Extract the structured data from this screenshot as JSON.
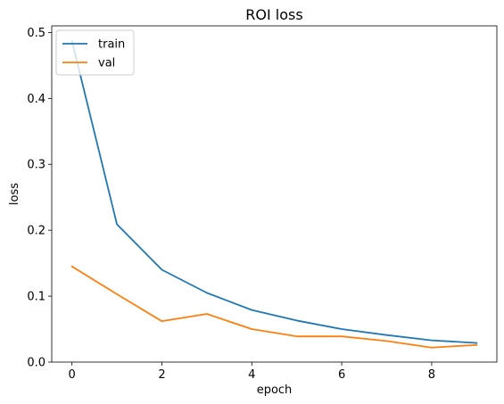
{
  "chart_data": {
    "type": "line",
    "title": "ROI loss",
    "xlabel": "epoch",
    "ylabel": "loss",
    "xlim": [
      -0.45,
      9.45
    ],
    "ylim": [
      0,
      0.51
    ],
    "xticks": [
      0,
      2,
      4,
      6,
      8
    ],
    "xtick_labels": [
      "0",
      "2",
      "4",
      "6",
      "8"
    ],
    "yticks": [
      0.0,
      0.1,
      0.2,
      0.3,
      0.4,
      0.5
    ],
    "ytick_labels": [
      "0.0",
      "0.1",
      "0.2",
      "0.3",
      "0.4",
      "0.5"
    ],
    "grid": false,
    "legend_position": "top-left",
    "x": [
      0,
      1,
      2,
      3,
      4,
      5,
      6,
      7,
      8,
      9
    ],
    "series": [
      {
        "name": "train",
        "color": "#1f77b4",
        "values": [
          0.487,
          0.209,
          0.14,
          0.105,
          0.079,
          0.063,
          0.05,
          0.041,
          0.033,
          0.029
        ]
      },
      {
        "name": "val",
        "color": "#ff7f0e",
        "values": [
          0.145,
          0.103,
          0.062,
          0.073,
          0.05,
          0.039,
          0.039,
          0.032,
          0.022,
          0.026
        ]
      }
    ]
  }
}
